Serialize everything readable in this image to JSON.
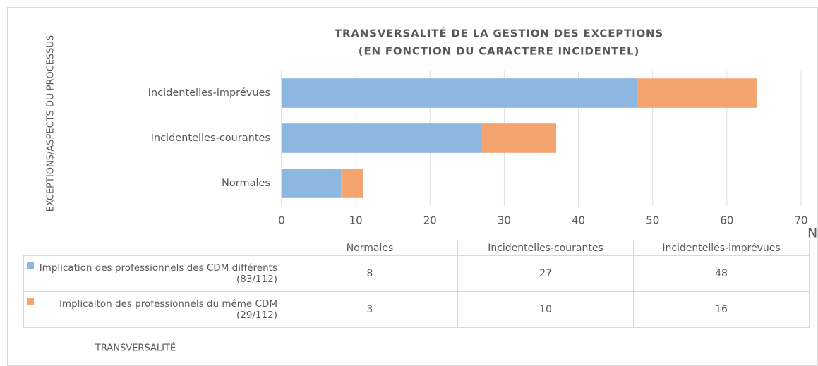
{
  "chart_data": {
    "type": "stacked-barh",
    "title": "TRANSVERSALITÉ DE LA GESTION DES EXCEPTIONS",
    "subtitle": "(EN FONCTION DU CARACTERE INCIDENTEL)",
    "y_label": "EXCEPTIONS/ASPECTS DU PROCESSUS",
    "x_label": "TRANSVERSALITÉ",
    "annotations": [
      "N"
    ],
    "categories": [
      "Normales",
      "Incidentelles-courantes",
      "Incidentelles-imprévues"
    ],
    "series": [
      {
        "name": "Implication des professionnels des CDM différents (83/112)",
        "color": "#8db6e1",
        "values": [
          8,
          27,
          48
        ]
      },
      {
        "name": "Implicaiton des professionnels du même CDM (29/112)",
        "color": "#f4a46f",
        "values": [
          3,
          10,
          16
        ]
      }
    ],
    "xlim": [
      0,
      70
    ],
    "xticks": [
      0,
      10,
      20,
      30,
      40,
      50,
      60,
      70
    ],
    "grid": true,
    "data_table": true
  }
}
